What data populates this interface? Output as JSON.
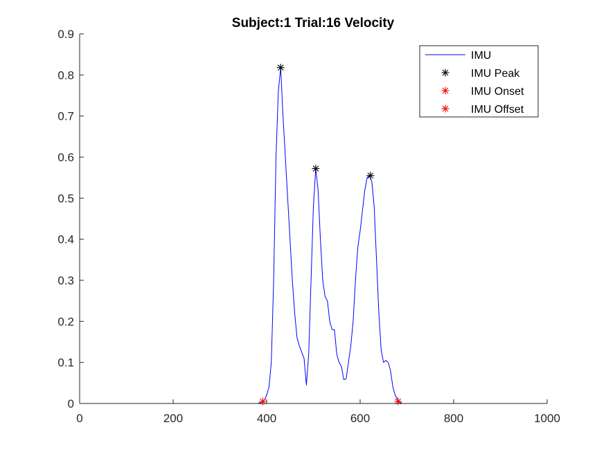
{
  "chart_data": {
    "type": "line",
    "title": "Subject:1 Trial:16 Velocity",
    "xlabel": "",
    "ylabel": "",
    "xlim": [
      0,
      1000
    ],
    "ylim": [
      0,
      0.9
    ],
    "xticks": [
      0,
      200,
      400,
      600,
      800,
      1000
    ],
    "xtick_labels": [
      "0",
      "200",
      "400",
      "600",
      "800",
      "1000"
    ],
    "yticks": [
      0,
      0.1,
      0.2,
      0.3,
      0.4,
      0.5,
      0.6,
      0.7,
      0.8,
      0.9
    ],
    "ytick_labels": [
      "0",
      "0.1",
      "0.2",
      "0.3",
      "0.4",
      "0.5",
      "0.6",
      "0.7",
      "0.8",
      "0.9"
    ],
    "grid": false,
    "legend_position": "top-right",
    "series": [
      {
        "name": "IMU",
        "kind": "line",
        "color": "#0000ff",
        "x": [
          0,
          380,
          390,
          395,
          400,
          405,
          410,
          415,
          420,
          425,
          430,
          435,
          440,
          445,
          450,
          455,
          460,
          465,
          470,
          475,
          480,
          485,
          490,
          495,
          500,
          505,
          510,
          515,
          520,
          525,
          530,
          535,
          540,
          545,
          550,
          555,
          560,
          565,
          570,
          575,
          580,
          585,
          590,
          595,
          600,
          605,
          610,
          615,
          620,
          625,
          630,
          635,
          640,
          645,
          650,
          655,
          660,
          665,
          670,
          675,
          680,
          685,
          690,
          700,
          800,
          970
        ],
        "y": [
          0,
          0,
          0.003,
          0.008,
          0.02,
          0.04,
          0.1,
          0.3,
          0.6,
          0.76,
          0.818,
          0.7,
          0.6,
          0.5,
          0.4,
          0.3,
          0.22,
          0.16,
          0.14,
          0.125,
          0.11,
          0.045,
          0.12,
          0.3,
          0.48,
          0.572,
          0.52,
          0.4,
          0.3,
          0.26,
          0.25,
          0.2,
          0.18,
          0.18,
          0.12,
          0.1,
          0.09,
          0.058,
          0.06,
          0.1,
          0.14,
          0.2,
          0.3,
          0.38,
          0.42,
          0.47,
          0.52,
          0.55,
          0.555,
          0.54,
          0.48,
          0.35,
          0.22,
          0.13,
          0.1,
          0.105,
          0.1,
          0.08,
          0.04,
          0.02,
          0.01,
          0.003,
          0,
          0,
          0,
          0
        ]
      },
      {
        "name": "IMU Peak",
        "kind": "marker",
        "color": "#000000",
        "x": [
          430,
          505,
          622
        ],
        "y": [
          0.818,
          0.572,
          0.555
        ]
      },
      {
        "name": "IMU Onset",
        "kind": "marker",
        "color": "#ff0000",
        "x": [
          392
        ],
        "y": [
          0.005
        ]
      },
      {
        "name": "IMU Offset",
        "kind": "marker",
        "color": "#ff0000",
        "x": [
          681
        ],
        "y": [
          0.005
        ]
      }
    ]
  }
}
